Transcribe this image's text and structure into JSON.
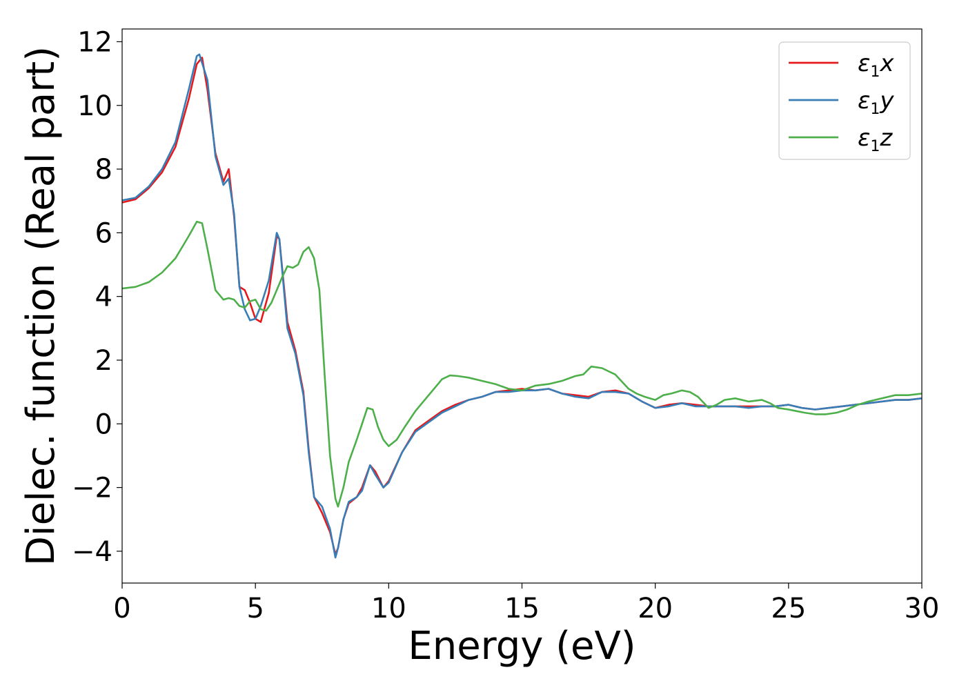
{
  "chart_data": {
    "type": "line",
    "title": "",
    "xlabel": "Energy (eV)",
    "ylabel": "Dielec. function (Real part)",
    "xlim": [
      0,
      30
    ],
    "ylim": [
      -5,
      12.4
    ],
    "xticks": [
      "0",
      "5",
      "10",
      "15",
      "20",
      "25",
      "30"
    ],
    "yticks": [
      "−4",
      "−2",
      "0",
      "2",
      "4",
      "6",
      "8",
      "10",
      "12"
    ],
    "grid": false,
    "legend_position": "top-right",
    "series": [
      {
        "name": "ε₁x",
        "legend_main": "ε",
        "legend_sub": "1",
        "legend_var": "x",
        "color": "#e41a1c",
        "x": [
          0,
          0.5,
          1.0,
          1.5,
          2.0,
          2.5,
          2.8,
          3.0,
          3.2,
          3.5,
          3.8,
          4.0,
          4.2,
          4.4,
          4.6,
          4.8,
          5.0,
          5.2,
          5.5,
          5.8,
          5.9,
          6.2,
          6.5,
          6.8,
          7.0,
          7.2,
          7.5,
          7.8,
          8.0,
          8.1,
          8.3,
          8.5,
          8.8,
          9.0,
          9.3,
          9.5,
          9.8,
          10.0,
          10.5,
          11.0,
          11.5,
          12.0,
          12.5,
          13.0,
          13.5,
          14.0,
          14.5,
          15.0,
          15.5,
          16.0,
          16.5,
          17.0,
          17.5,
          18.0,
          18.5,
          19.0,
          19.5,
          20.0,
          20.5,
          21.0,
          21.5,
          22.0,
          22.5,
          23.0,
          23.5,
          24.0,
          24.5,
          25.0,
          25.5,
          26.0,
          26.5,
          27.0,
          27.5,
          28.0,
          28.5,
          29.0,
          29.5,
          30.0
        ],
        "y": [
          6.95,
          7.05,
          7.4,
          7.9,
          8.7,
          10.2,
          11.3,
          11.5,
          10.5,
          8.5,
          7.6,
          8.0,
          6.5,
          4.3,
          4.2,
          3.8,
          3.3,
          3.2,
          4.1,
          5.9,
          5.8,
          3.2,
          2.3,
          1.0,
          -0.8,
          -2.3,
          -2.8,
          -3.4,
          -4.1,
          -3.9,
          -3.0,
          -2.5,
          -2.3,
          -2.0,
          -1.3,
          -1.5,
          -2.0,
          -1.8,
          -0.9,
          -0.2,
          0.1,
          0.4,
          0.6,
          0.75,
          0.85,
          1.0,
          1.05,
          1.1,
          1.05,
          1.1,
          0.95,
          0.9,
          0.85,
          1.0,
          1.05,
          0.95,
          0.7,
          0.5,
          0.6,
          0.65,
          0.6,
          0.55,
          0.55,
          0.55,
          0.55,
          0.55,
          0.55,
          0.6,
          0.5,
          0.45,
          0.5,
          0.55,
          0.6,
          0.65,
          0.7,
          0.75,
          0.75,
          0.8
        ]
      },
      {
        "name": "ε₁y",
        "legend_main": "ε",
        "legend_sub": "1",
        "legend_var": "y",
        "color": "#377eb8",
        "x": [
          0,
          0.5,
          1.0,
          1.5,
          2.0,
          2.5,
          2.8,
          2.9,
          3.2,
          3.5,
          3.8,
          4.0,
          4.2,
          4.4,
          4.6,
          4.8,
          5.0,
          5.2,
          5.5,
          5.8,
          5.9,
          6.2,
          6.5,
          6.8,
          7.0,
          7.2,
          7.5,
          7.8,
          8.0,
          8.1,
          8.3,
          8.5,
          8.8,
          9.0,
          9.3,
          9.5,
          9.8,
          10.0,
          10.5,
          11.0,
          11.5,
          12.0,
          12.5,
          13.0,
          13.5,
          14.0,
          14.5,
          15.0,
          15.5,
          16.0,
          16.5,
          17.0,
          17.5,
          18.0,
          18.5,
          19.0,
          19.5,
          20.0,
          20.5,
          21.0,
          21.5,
          22.0,
          22.5,
          23.0,
          23.5,
          24.0,
          24.5,
          25.0,
          25.5,
          26.0,
          26.5,
          27.0,
          27.5,
          28.0,
          28.5,
          29.0,
          29.5,
          30.0
        ],
        "y": [
          7.02,
          7.1,
          7.45,
          8.0,
          8.85,
          10.5,
          11.55,
          11.6,
          10.8,
          8.4,
          7.5,
          7.7,
          6.6,
          4.3,
          3.6,
          3.25,
          3.3,
          3.7,
          4.5,
          6.0,
          5.8,
          3.0,
          2.2,
          0.9,
          -0.9,
          -2.3,
          -2.6,
          -3.3,
          -4.2,
          -3.9,
          -3.0,
          -2.45,
          -2.3,
          -2.1,
          -1.3,
          -1.6,
          -2.0,
          -1.85,
          -0.9,
          -0.25,
          0.05,
          0.35,
          0.55,
          0.75,
          0.85,
          1.0,
          1.0,
          1.05,
          1.05,
          1.1,
          0.95,
          0.85,
          0.8,
          1.0,
          1.0,
          0.95,
          0.7,
          0.5,
          0.55,
          0.65,
          0.55,
          0.55,
          0.55,
          0.55,
          0.5,
          0.55,
          0.55,
          0.6,
          0.5,
          0.45,
          0.5,
          0.55,
          0.6,
          0.65,
          0.7,
          0.75,
          0.75,
          0.8
        ]
      },
      {
        "name": "ε₁z",
        "legend_main": "ε",
        "legend_sub": "1",
        "legend_var": "z",
        "color": "#4daf4a",
        "x": [
          0,
          0.5,
          1.0,
          1.5,
          2.0,
          2.5,
          2.8,
          3.0,
          3.2,
          3.5,
          3.8,
          4.0,
          4.2,
          4.4,
          4.6,
          4.8,
          5.0,
          5.2,
          5.4,
          5.6,
          5.8,
          6.0,
          6.2,
          6.4,
          6.6,
          6.8,
          7.0,
          7.2,
          7.4,
          7.6,
          7.8,
          8.0,
          8.1,
          8.3,
          8.5,
          8.8,
          9.0,
          9.2,
          9.4,
          9.6,
          9.8,
          10.0,
          10.3,
          10.6,
          11.0,
          11.5,
          12.0,
          12.3,
          12.6,
          13.0,
          13.5,
          14.0,
          14.5,
          15.0,
          15.5,
          16.0,
          16.5,
          17.0,
          17.3,
          17.6,
          18.0,
          18.5,
          19.0,
          19.3,
          19.6,
          20.0,
          20.3,
          20.6,
          21.0,
          21.3,
          21.6,
          22.0,
          22.3,
          22.6,
          23.0,
          23.5,
          24.0,
          24.3,
          24.6,
          25.0,
          25.3,
          25.6,
          26.0,
          26.4,
          26.8,
          27.2,
          27.6,
          28.0,
          28.5,
          29.0,
          29.5,
          30.0
        ],
        "y": [
          4.25,
          4.3,
          4.45,
          4.75,
          5.2,
          5.9,
          6.35,
          6.3,
          5.5,
          4.2,
          3.9,
          3.95,
          3.9,
          3.7,
          3.65,
          3.85,
          3.9,
          3.6,
          3.55,
          3.8,
          4.2,
          4.6,
          4.95,
          4.9,
          5.0,
          5.4,
          5.55,
          5.2,
          4.2,
          1.5,
          -1.0,
          -2.35,
          -2.6,
          -2.0,
          -1.2,
          -0.5,
          0.0,
          0.5,
          0.45,
          -0.1,
          -0.5,
          -0.7,
          -0.5,
          -0.1,
          0.4,
          0.9,
          1.4,
          1.52,
          1.5,
          1.45,
          1.35,
          1.25,
          1.1,
          1.05,
          1.2,
          1.25,
          1.35,
          1.5,
          1.55,
          1.8,
          1.75,
          1.55,
          1.1,
          0.95,
          0.85,
          0.75,
          0.9,
          0.95,
          1.05,
          1.0,
          0.85,
          0.5,
          0.6,
          0.75,
          0.8,
          0.7,
          0.75,
          0.65,
          0.5,
          0.45,
          0.4,
          0.35,
          0.3,
          0.3,
          0.35,
          0.45,
          0.6,
          0.7,
          0.8,
          0.9,
          0.9,
          0.95
        ]
      }
    ]
  }
}
